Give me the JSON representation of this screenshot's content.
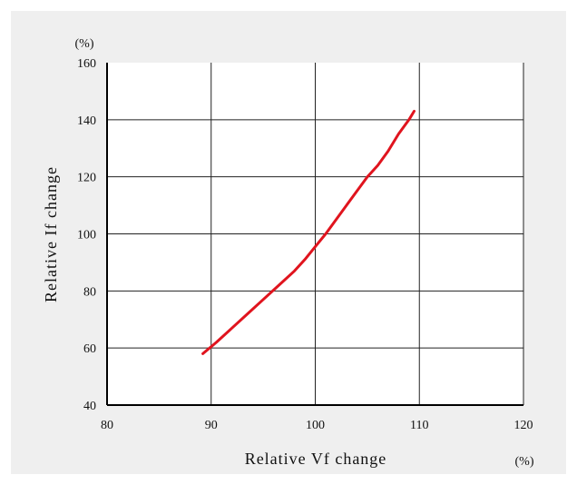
{
  "chart_data": {
    "type": "line",
    "title": "",
    "xlabel": "Relative Vf change",
    "ylabel": "Relative If change",
    "x_unit": "(%)",
    "y_unit": "(%)",
    "xlim": [
      80,
      120
    ],
    "ylim": [
      40,
      160
    ],
    "xticks": [
      80,
      90,
      100,
      110,
      120
    ],
    "yticks": [
      40,
      60,
      80,
      100,
      120,
      140,
      160
    ],
    "grid": true,
    "series": [
      {
        "color": "#e0141e",
        "x": [
          89.2,
          90.5,
          92.0,
          93.5,
          95.0,
          96.5,
          98.0,
          99.0,
          100.0,
          101.0,
          102.0,
          103.0,
          104.0,
          105.0,
          106.0,
          107.0,
          108.0,
          109.0,
          109.5
        ],
        "y": [
          58,
          62,
          67,
          72,
          77,
          82,
          87,
          91,
          95.5,
          100,
          105,
          110,
          115,
          120,
          124,
          129,
          135,
          140,
          143
        ]
      }
    ]
  }
}
